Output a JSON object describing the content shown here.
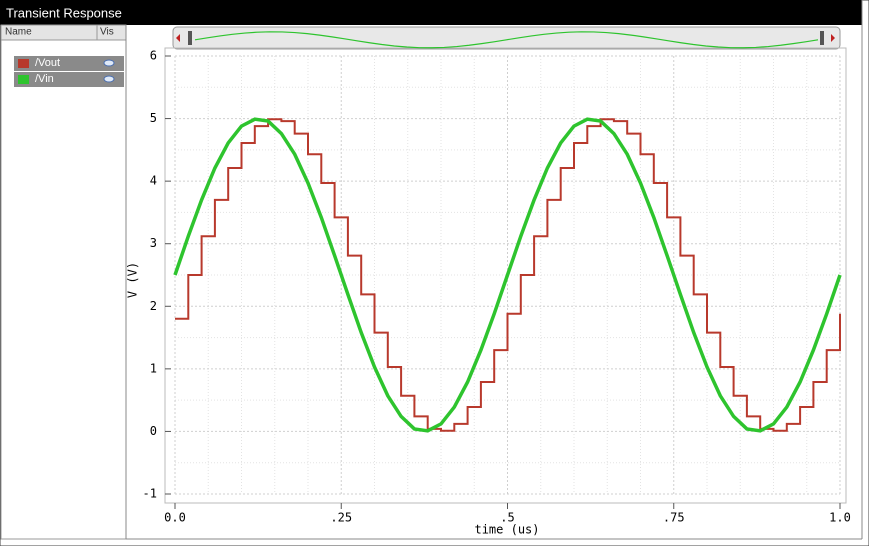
{
  "window": {
    "title": "Transient Response",
    "columns": [
      "Name",
      "Vis"
    ]
  },
  "chart_data": {
    "type": "line",
    "x_label": "time (us)",
    "y_label": "V (V)",
    "x": [
      0,
      0.02,
      0.04,
      0.06,
      0.08,
      0.1,
      0.12,
      0.14,
      0.16,
      0.18,
      0.2,
      0.22,
      0.24,
      0.26,
      0.28,
      0.3,
      0.32,
      0.34,
      0.36,
      0.38,
      0.4,
      0.42,
      0.44,
      0.46,
      0.48,
      0.5,
      0.52,
      0.54,
      0.56,
      0.58,
      0.6,
      0.62,
      0.64,
      0.66,
      0.68,
      0.7,
      0.72,
      0.74,
      0.76,
      0.78,
      0.8,
      0.82,
      0.84,
      0.86,
      0.88,
      0.9,
      0.92,
      0.94,
      0.96,
      0.98,
      1.0
    ],
    "series": [
      {
        "name": "/Vout",
        "color": "#b8392c",
        "step": "post",
        "values": [
          1.8,
          2.5,
          3.12,
          3.7,
          4.21,
          4.61,
          4.88,
          4.99,
          4.96,
          4.76,
          4.43,
          3.97,
          3.42,
          2.81,
          2.19,
          1.58,
          1.03,
          0.57,
          0.24,
          0.04,
          0.01,
          0.12,
          0.39,
          0.79,
          1.3,
          1.88,
          2.5,
          3.12,
          3.7,
          4.21,
          4.61,
          4.88,
          4.99,
          4.96,
          4.76,
          4.43,
          3.97,
          3.42,
          2.81,
          2.19,
          1.58,
          1.03,
          0.57,
          0.24,
          0.04,
          0.01,
          0.12,
          0.39,
          0.79,
          1.3,
          1.88
        ]
      },
      {
        "name": "/Vin",
        "color": "#2ec42e",
        "values": [
          2.5,
          3.12,
          3.7,
          4.21,
          4.61,
          4.88,
          4.99,
          4.96,
          4.76,
          4.43,
          3.97,
          3.42,
          2.81,
          2.19,
          1.58,
          1.03,
          0.57,
          0.24,
          0.04,
          0.01,
          0.12,
          0.39,
          0.79,
          1.3,
          1.88,
          2.5,
          3.12,
          3.7,
          4.21,
          4.61,
          4.88,
          4.99,
          4.96,
          4.76,
          4.43,
          3.97,
          3.42,
          2.81,
          2.19,
          1.58,
          1.03,
          0.57,
          0.24,
          0.04,
          0.01,
          0.12,
          0.39,
          0.79,
          1.3,
          1.88,
          2.5
        ]
      }
    ],
    "xlim": [
      0,
      1
    ],
    "ylim": [
      -1,
      6
    ],
    "xticks": [
      {
        "value": 0,
        "label": "0.0"
      },
      {
        "value": 0.25,
        "label": ".25"
      },
      {
        "value": 0.5,
        "label": ".5"
      },
      {
        "value": 0.75,
        "label": ".75"
      },
      {
        "value": 1,
        "label": "1.0"
      }
    ],
    "yticks": [
      -1,
      0,
      1,
      2,
      3,
      4,
      5,
      6
    ],
    "grid": true
  }
}
